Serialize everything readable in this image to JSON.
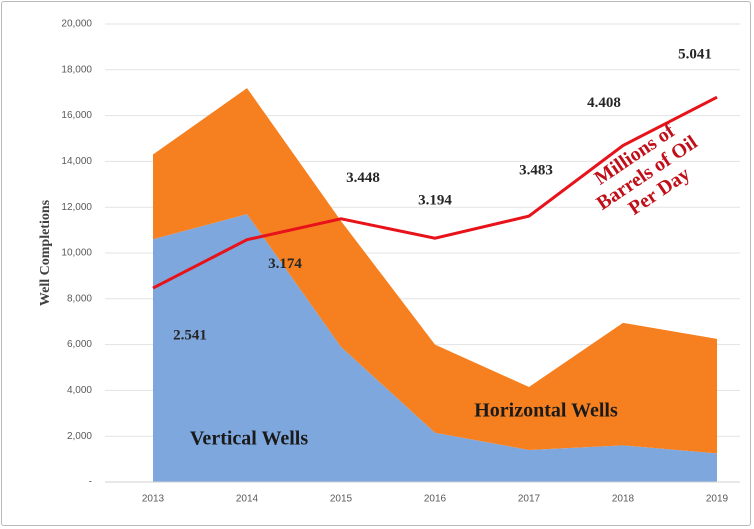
{
  "chart_data": {
    "type": "stacked-area-line",
    "y_label": "Well Completions",
    "categories": [
      "2013",
      "2014",
      "2015",
      "2016",
      "2017",
      "2018",
      "2019"
    ],
    "series": [
      {
        "name": "Vertical Wells",
        "color": "#7ea7dd",
        "values": [
          10600,
          11700,
          5900,
          2150,
          1400,
          1600,
          1250
        ]
      },
      {
        "name": "Horizontal Wells",
        "color": "#f6801f",
        "values": [
          3700,
          5500,
          5500,
          3850,
          2750,
          5350,
          5000
        ]
      },
      {
        "name": "Millions of Barrels of Oil Per Day",
        "color": "#e8121a",
        "axis": "y2",
        "values": [
          2.541,
          3.174,
          3.448,
          3.194,
          3.483,
          4.408,
          5.041
        ]
      }
    ],
    "ylim": [
      0,
      20000
    ],
    "yticks": [
      {
        "value": 0,
        "label": "-"
      },
      {
        "value": 2000,
        "label": "2,000"
      },
      {
        "value": 4000,
        "label": "4,000"
      },
      {
        "value": 6000,
        "label": "6,000"
      },
      {
        "value": 8000,
        "label": "8,000"
      },
      {
        "value": 10000,
        "label": "10,000"
      },
      {
        "value": 12000,
        "label": "12,000"
      },
      {
        "value": 14000,
        "label": "14,000"
      },
      {
        "value": 16000,
        "label": "16,000"
      },
      {
        "value": 18000,
        "label": "18,000"
      },
      {
        "value": 20000,
        "label": "20,000"
      }
    ],
    "y2lim": [
      0,
      6
    ],
    "grid": true
  }
}
